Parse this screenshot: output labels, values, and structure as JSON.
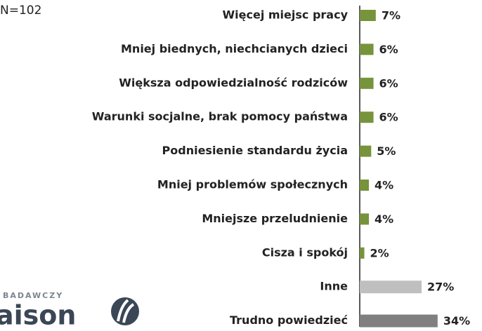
{
  "chart_data": {
    "type": "bar",
    "orientation": "horizontal",
    "annotation": "N=102",
    "logo": {
      "top": "BADAWCZY",
      "bottom": "aison"
    },
    "categories": [
      "Więcej miejsc pracy",
      "Mniej biednych, niechcianych dzieci",
      "Większa odpowiedzialność rodziców",
      "Warunki socjalne, brak  pomocy państwa",
      "Podniesienie standardu życia",
      "Mniej problemów społecznych",
      "Mniejsze przeludnienie",
      "Cisza i spokój",
      "Inne",
      "Trudno powiedzieć"
    ],
    "values": [
      7,
      6,
      6,
      6,
      5,
      4,
      4,
      2,
      27,
      34
    ],
    "value_labels": [
      "7%",
      "6%",
      "6%",
      "6%",
      "5%",
      "4%",
      "4%",
      "2%",
      "27%",
      "34%"
    ],
    "colors": [
      "#77933c",
      "#77933c",
      "#77933c",
      "#77933c",
      "#77933c",
      "#77933c",
      "#77933c",
      "#77933c",
      "#bfbfbf",
      "#808080"
    ],
    "xlim": [
      0,
      50
    ]
  }
}
